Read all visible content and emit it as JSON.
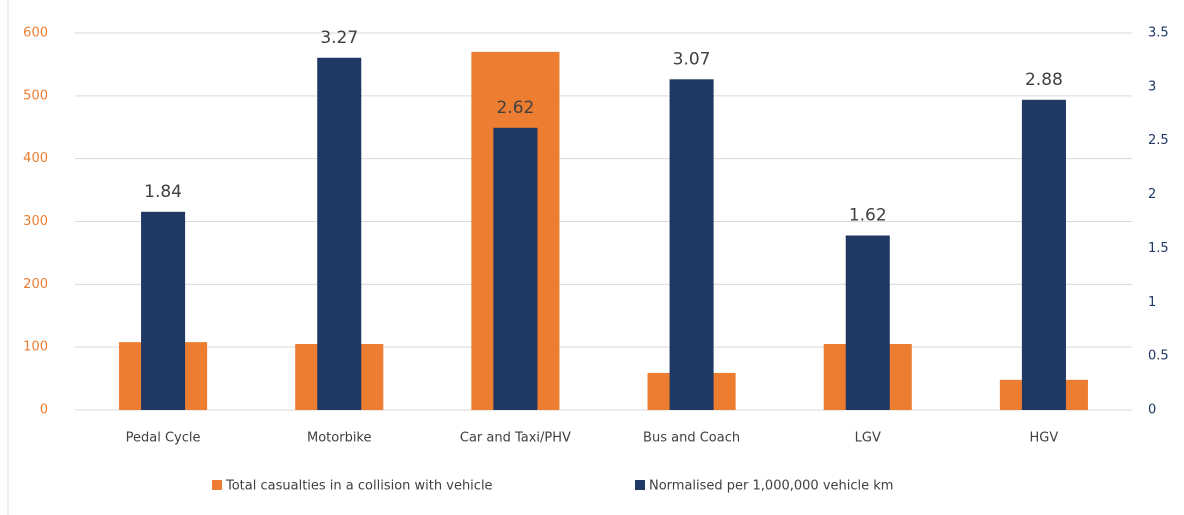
{
  "chart_data": {
    "type": "bar",
    "categories": [
      "Pedal Cycle",
      "Motorbike",
      "Car and Taxi/PHV",
      "Bus and Coach",
      "LGV",
      "HGV"
    ],
    "series": [
      {
        "name": "Total casualties in a collision with vehicle",
        "color": "#ed7d31",
        "values": [
          108,
          105,
          570,
          59,
          105,
          48
        ]
      },
      {
        "name": "Normalised per 1,000,000 vehicle km",
        "color": "#1f3864",
        "values": [
          1.84,
          3.27,
          2.62,
          3.07,
          1.62,
          2.88
        ],
        "axis": "y2"
      }
    ],
    "ylim": [
      0,
      600
    ],
    "yticks": [
      0,
      100,
      200,
      300,
      400,
      500,
      600
    ],
    "y2lim": [
      0,
      3.5
    ],
    "y2ticks": [
      0,
      0.5,
      1,
      1.5,
      2,
      2.5,
      3,
      3.5
    ],
    "grid": true,
    "legend": "bottom"
  }
}
